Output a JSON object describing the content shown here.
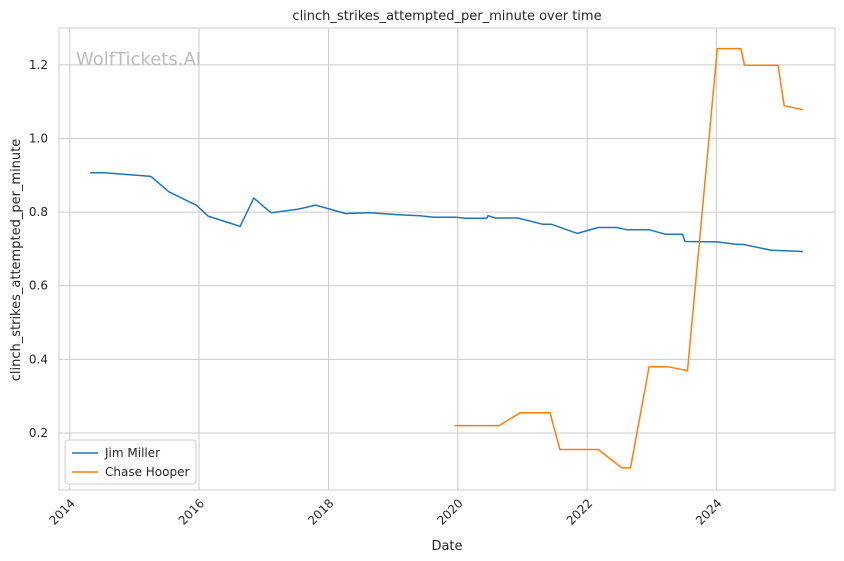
{
  "watermark": "WolfTickets.AI",
  "chart_data": {
    "type": "line",
    "title": "clinch_strikes_attempted_per_minute over time",
    "xlabel": "Date",
    "ylabel": "clinch_strikes_attempted_per_minute",
    "xlim": [
      "2013-11-01",
      "2025-11-01"
    ],
    "ylim": [
      0.045,
      1.3
    ],
    "x_ticks": [
      "2014",
      "2016",
      "2018",
      "2020",
      "2022",
      "2024"
    ],
    "y_ticks": [
      "0.2",
      "0.4",
      "0.6",
      "0.8",
      "1.0",
      "1.2"
    ],
    "grid": true,
    "legend_position": "lower-left",
    "series": [
      {
        "name": "Jim Miller",
        "color": "#1f77b4",
        "points": [
          [
            "2014-04-26",
            0.907
          ],
          [
            "2014-07-16",
            0.907
          ],
          [
            "2015-04-04",
            0.897
          ],
          [
            "2015-07-15",
            0.855
          ],
          [
            "2015-12-19",
            0.818
          ],
          [
            "2016-02-21",
            0.789
          ],
          [
            "2016-08-20",
            0.761
          ],
          [
            "2016-11-05",
            0.838
          ],
          [
            "2017-02-11",
            0.798
          ],
          [
            "2017-07-16",
            0.808
          ],
          [
            "2017-10-21",
            0.819
          ],
          [
            "2018-04-07",
            0.796
          ],
          [
            "2018-08-25",
            0.798
          ],
          [
            "2019-01-19",
            0.793
          ],
          [
            "2019-06-01",
            0.79
          ],
          [
            "2019-08-17",
            0.786
          ],
          [
            "2019-12-21",
            0.786
          ],
          [
            "2020-02-15",
            0.783
          ],
          [
            "2020-06-13",
            0.783
          ],
          [
            "2020-06-20",
            0.79
          ],
          [
            "2020-08-01",
            0.784
          ],
          [
            "2020-12-05",
            0.784
          ],
          [
            "2021-04-24",
            0.767
          ],
          [
            "2021-06-12",
            0.767
          ],
          [
            "2021-11-06",
            0.742
          ],
          [
            "2022-03-05",
            0.758
          ],
          [
            "2022-06-18",
            0.758
          ],
          [
            "2022-08-13",
            0.752
          ],
          [
            "2022-12-17",
            0.752
          ],
          [
            "2023-03-18",
            0.74
          ],
          [
            "2023-06-24",
            0.74
          ],
          [
            "2023-07-08",
            0.72
          ],
          [
            "2024-01-06",
            0.719
          ],
          [
            "2024-04-13",
            0.713
          ],
          [
            "2024-06-01",
            0.712
          ],
          [
            "2024-11-09",
            0.696
          ],
          [
            "2025-05-03",
            0.693
          ]
        ]
      },
      {
        "name": "Chase Hooper",
        "color": "#ff7f0e",
        "points": [
          [
            "2019-12-14",
            0.22
          ],
          [
            "2020-08-22",
            0.22
          ],
          [
            "2020-12-19",
            0.255
          ],
          [
            "2021-06-05",
            0.255
          ],
          [
            "2021-07-31",
            0.155
          ],
          [
            "2022-03-05",
            0.155
          ],
          [
            "2022-07-16",
            0.105
          ],
          [
            "2022-09-03",
            0.105
          ],
          [
            "2022-12-17",
            0.38
          ],
          [
            "2023-04-01",
            0.38
          ],
          [
            "2023-07-22",
            0.369
          ],
          [
            "2024-01-06",
            1.244
          ],
          [
            "2024-05-18",
            1.244
          ],
          [
            "2024-06-08",
            1.199
          ],
          [
            "2024-12-14",
            1.199
          ],
          [
            "2025-01-18",
            1.089
          ],
          [
            "2025-05-03",
            1.078
          ]
        ]
      }
    ]
  }
}
